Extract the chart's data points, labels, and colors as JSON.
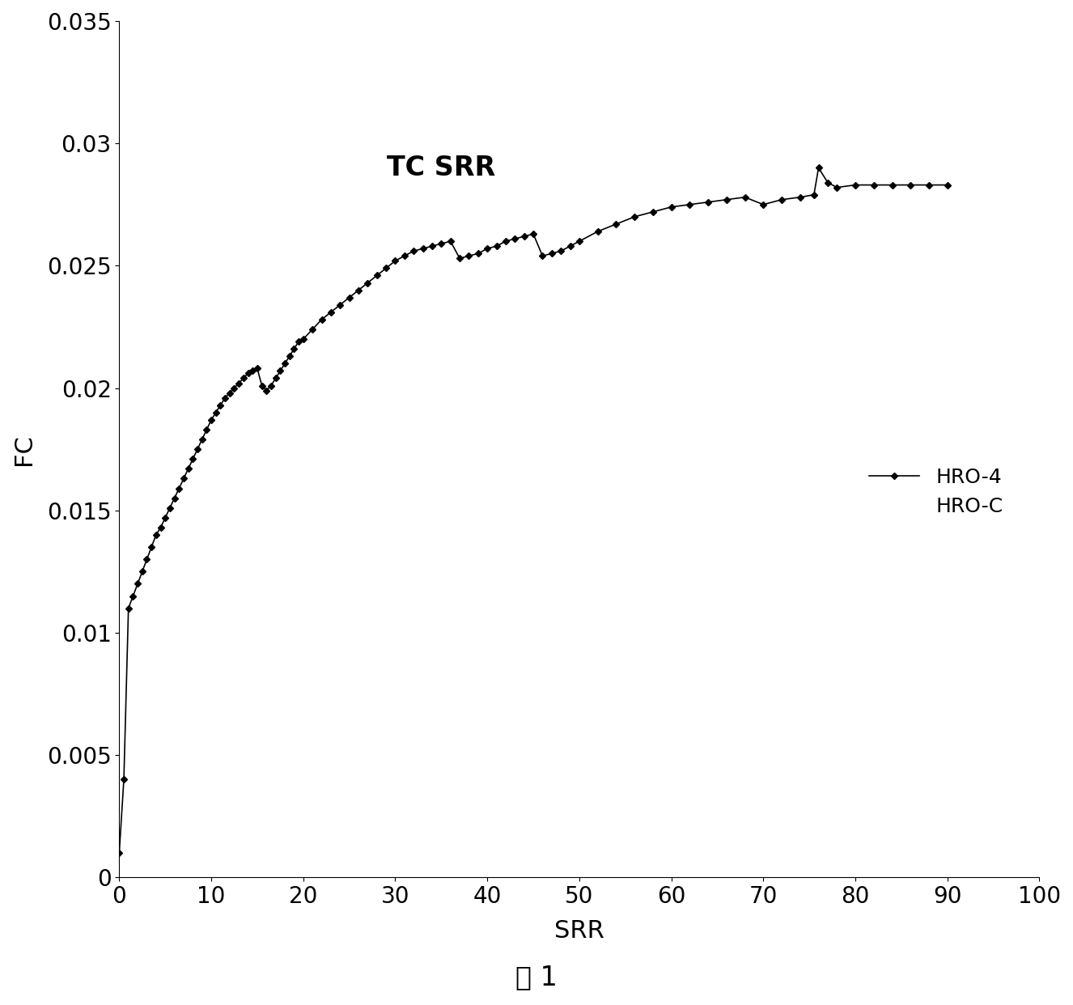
{
  "title_annotation": "TC SRR",
  "xlabel": "SRR",
  "ylabel": "FC",
  "caption": "图 1",
  "xlim": [
    0,
    100
  ],
  "ylim": [
    0,
    0.035
  ],
  "xticks": [
    0,
    10,
    20,
    30,
    40,
    50,
    60,
    70,
    80,
    90,
    100
  ],
  "yticks": [
    0,
    0.005,
    0.01,
    0.015,
    0.02,
    0.025,
    0.03,
    0.035
  ],
  "ytick_labels": [
    "0",
    "0.005",
    "0.01",
    "0.015",
    "0.02",
    "0.025",
    "0.03",
    "0.035"
  ],
  "legend_entries": [
    "HRO-4",
    "HRO-C"
  ],
  "line_color": "#000000",
  "marker": "D",
  "marker_size": 4,
  "background_color": "#ffffff",
  "srr_values": [
    0.0,
    0.5,
    1.0,
    1.5,
    2.0,
    2.5,
    3.0,
    3.5,
    4.0,
    4.5,
    5.0,
    5.5,
    6.0,
    6.5,
    7.0,
    7.5,
    8.0,
    8.5,
    9.0,
    9.5,
    10.0,
    10.5,
    11.0,
    11.5,
    12.0,
    12.5,
    13.0,
    13.5,
    14.0,
    14.5,
    15.0,
    15.5,
    16.0,
    16.5,
    17.0,
    17.5,
    18.0,
    18.5,
    19.0,
    19.5,
    20.0,
    21.0,
    22.0,
    23.0,
    24.0,
    25.0,
    26.0,
    27.0,
    28.0,
    29.0,
    30.0,
    31.0,
    32.0,
    33.0,
    34.0,
    35.0,
    36.0,
    37.0,
    38.0,
    39.0,
    40.0,
    41.0,
    42.0,
    43.0,
    44.0,
    45.0,
    46.0,
    47.0,
    48.0,
    49.0,
    50.0,
    52.0,
    54.0,
    56.0,
    58.0,
    60.0,
    62.0,
    64.0,
    66.0,
    68.0,
    70.0,
    72.0,
    74.0,
    75.5,
    76.0,
    77.0,
    78.0,
    80.0,
    82.0,
    84.0,
    86.0,
    88.0,
    90.0
  ],
  "fc_values": [
    0.001,
    0.004,
    0.011,
    0.0115,
    0.012,
    0.0125,
    0.013,
    0.0135,
    0.014,
    0.0143,
    0.0147,
    0.0151,
    0.0155,
    0.0159,
    0.0163,
    0.0167,
    0.0171,
    0.0175,
    0.0179,
    0.0183,
    0.0187,
    0.019,
    0.0193,
    0.0196,
    0.0198,
    0.02,
    0.0202,
    0.0204,
    0.0206,
    0.0207,
    0.0208,
    0.0201,
    0.0199,
    0.0201,
    0.0204,
    0.0207,
    0.021,
    0.0213,
    0.0216,
    0.0219,
    0.022,
    0.0224,
    0.0228,
    0.0231,
    0.0234,
    0.0237,
    0.024,
    0.0243,
    0.0246,
    0.0249,
    0.0252,
    0.0254,
    0.0256,
    0.0257,
    0.0258,
    0.0259,
    0.026,
    0.0253,
    0.0254,
    0.0255,
    0.0257,
    0.0258,
    0.026,
    0.0261,
    0.0262,
    0.0263,
    0.0254,
    0.0255,
    0.0256,
    0.0258,
    0.026,
    0.0264,
    0.0267,
    0.027,
    0.0272,
    0.0274,
    0.0275,
    0.0276,
    0.0277,
    0.0278,
    0.0275,
    0.0277,
    0.0278,
    0.0279,
    0.029,
    0.0284,
    0.0282,
    0.0283,
    0.0283,
    0.0283,
    0.0283,
    0.0283,
    0.0283
  ]
}
